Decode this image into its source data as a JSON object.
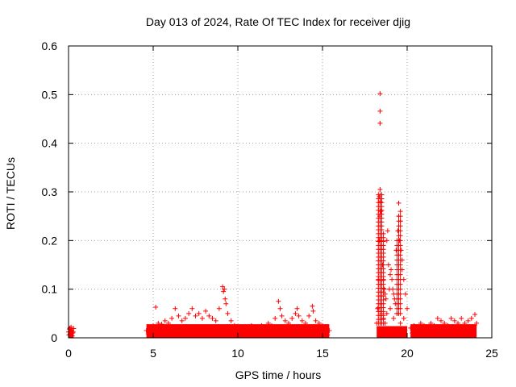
{
  "chart_data": {
    "type": "scatter",
    "title": "Day 013 of 2024, Rate Of TEC Index for receiver djig",
    "xlabel": "GPS time / hours",
    "ylabel": "ROTI / TECUs",
    "xlim": [
      0,
      25
    ],
    "ylim": [
      0,
      0.6
    ],
    "xticks": [
      0,
      5,
      10,
      15,
      20,
      25
    ],
    "xtick_labels": [
      "0",
      "5",
      "10",
      "15",
      "20",
      "25"
    ],
    "yticks": [
      0,
      0.1,
      0.2,
      0.3,
      0.4,
      0.5,
      0.6
    ],
    "ytick_labels": [
      "0",
      "0.1",
      "0.2",
      "0.3",
      "0.4",
      "0.5",
      "0.6"
    ],
    "grid": true,
    "marker": "+",
    "marker_color": "#ff0000",
    "series": [
      {
        "name": "ROTI",
        "x": [
          0.0,
          0.05,
          0.1,
          0.15,
          0.2,
          0.25,
          0.3,
          0.02,
          0.12,
          0.22,
          0.28,
          0.08,
          0.18,
          4.6,
          4.8,
          5.0,
          5.15,
          5.3,
          5.5,
          5.7,
          5.9,
          6.1,
          6.3,
          6.5,
          6.7,
          6.9,
          7.1,
          7.3,
          7.5,
          7.7,
          7.9,
          8.1,
          8.3,
          8.5,
          8.7,
          8.9,
          9.1,
          9.15,
          9.2,
          9.25,
          9.3,
          9.4,
          9.6,
          9.8,
          10.0,
          10.2,
          10.4,
          10.6,
          10.8,
          11.0,
          11.2,
          11.4,
          11.6,
          11.8,
          12.0,
          12.2,
          12.4,
          12.5,
          12.6,
          12.8,
          13.0,
          13.2,
          13.4,
          13.5,
          13.6,
          13.8,
          14.0,
          14.2,
          14.4,
          14.45,
          14.6,
          14.8,
          15.0,
          15.2,
          15.4,
          4.7,
          5.1,
          5.6,
          6.2,
          6.6,
          7.0,
          7.4,
          7.8,
          8.2,
          8.6,
          9.0,
          9.5,
          9.9,
          10.3,
          10.7,
          11.1,
          11.5,
          11.9,
          12.3,
          12.7,
          13.1,
          13.7,
          14.1,
          14.7,
          15.1,
          15.3,
          18.2,
          18.25,
          18.3,
          18.35,
          18.35,
          18.38,
          18.4,
          18.42,
          18.45,
          18.5,
          18.55,
          18.6,
          18.65,
          18.7,
          18.75,
          18.8,
          18.85,
          18.9,
          18.95,
          19.0,
          19.05,
          19.1,
          19.15,
          19.2,
          19.25,
          19.3,
          19.35,
          19.4,
          19.45,
          19.5,
          19.55,
          19.6,
          19.65,
          19.7,
          19.8,
          19.9,
          20.0,
          18.4,
          18.4,
          18.4,
          18.5,
          18.6,
          18.7,
          18.8,
          19.0,
          19.2,
          19.4,
          19.6,
          19.8,
          18.45,
          18.55,
          19.5,
          19.6,
          19.7,
          20.2,
          20.4,
          20.6,
          20.8,
          21.0,
          21.2,
          21.4,
          21.6,
          21.8,
          22.0,
          22.2,
          22.4,
          22.6,
          22.8,
          23.0,
          23.2,
          23.4,
          23.6,
          23.8,
          24.0,
          24.1,
          20.3,
          20.9,
          21.5,
          22.1,
          22.7,
          23.3,
          23.9
        ],
        "y": [
          0.012,
          0.018,
          0.008,
          0.022,
          0.015,
          0.01,
          0.019,
          0.006,
          0.014,
          0.004,
          0.012,
          0.02,
          0.009,
          0.015,
          0.02,
          0.025,
          0.063,
          0.03,
          0.028,
          0.035,
          0.03,
          0.04,
          0.06,
          0.045,
          0.035,
          0.04,
          0.05,
          0.06,
          0.045,
          0.05,
          0.04,
          0.055,
          0.045,
          0.04,
          0.035,
          0.06,
          0.105,
          0.095,
          0.1,
          0.08,
          0.07,
          0.05,
          0.035,
          0.025,
          0.02,
          0.022,
          0.02,
          0.018,
          0.025,
          0.022,
          0.02,
          0.025,
          0.022,
          0.03,
          0.025,
          0.04,
          0.075,
          0.06,
          0.045,
          0.035,
          0.03,
          0.04,
          0.05,
          0.06,
          0.045,
          0.035,
          0.03,
          0.045,
          0.065,
          0.055,
          0.035,
          0.03,
          0.025,
          0.02,
          0.015,
          0.008,
          0.012,
          0.01,
          0.015,
          0.012,
          0.01,
          0.014,
          0.012,
          0.01,
          0.015,
          0.012,
          0.01,
          0.008,
          0.006,
          0.008,
          0.006,
          0.008,
          0.01,
          0.008,
          0.01,
          0.012,
          0.01,
          0.008,
          0.01,
          0.008,
          0.006,
          0.03,
          0.06,
          0.12,
          0.2,
          0.29,
          0.25,
          0.305,
          0.28,
          0.26,
          0.2,
          0.15,
          0.12,
          0.1,
          0.09,
          0.08,
          0.2,
          0.22,
          0.15,
          0.1,
          0.13,
          0.14,
          0.12,
          0.1,
          0.09,
          0.08,
          0.07,
          0.18,
          0.2,
          0.22,
          0.25,
          0.2,
          0.24,
          0.18,
          0.16,
          0.12,
          0.09,
          0.06,
          0.502,
          0.466,
          0.441,
          0.05,
          0.04,
          0.03,
          0.05,
          0.06,
          0.04,
          0.05,
          0.03,
          0.04,
          0.01,
          0.015,
          0.277,
          0.26,
          0.14,
          0.02,
          0.025,
          0.02,
          0.03,
          0.025,
          0.02,
          0.03,
          0.025,
          0.04,
          0.035,
          0.03,
          0.025,
          0.04,
          0.035,
          0.03,
          0.04,
          0.03,
          0.035,
          0.04,
          0.048,
          0.03,
          0.01,
          0.012,
          0.01,
          0.008,
          0.01,
          0.012,
          0.01
        ]
      }
    ]
  }
}
